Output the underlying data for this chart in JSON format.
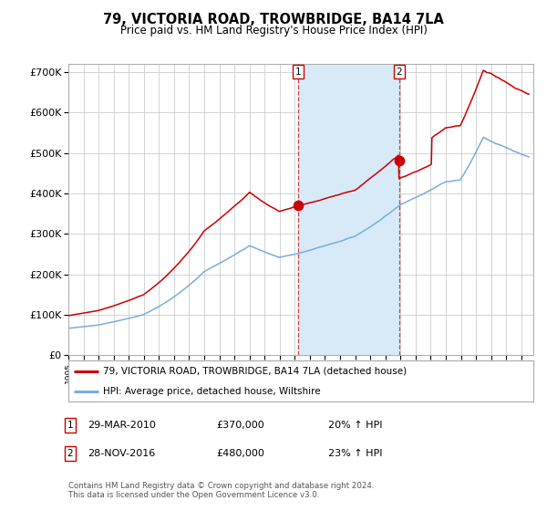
{
  "title": "79, VICTORIA ROAD, TROWBRIDGE, BA14 7LA",
  "subtitle": "Price paid vs. HM Land Registry's House Price Index (HPI)",
  "legend_line1": "79, VICTORIA ROAD, TROWBRIDGE, BA14 7LA (detached house)",
  "legend_line2": "HPI: Average price, detached house, Wiltshire",
  "sale1_date": "29-MAR-2010",
  "sale1_price": "£370,000",
  "sale1_hpi": "20% ↑ HPI",
  "sale1_year": 2010.23,
  "sale1_value": 370000,
  "sale2_date": "28-NOV-2016",
  "sale2_price": "£480,000",
  "sale2_hpi": "23% ↑ HPI",
  "sale2_year": 2016.91,
  "sale2_value": 480000,
  "red_line_color": "#cc0000",
  "blue_line_color": "#7aaddc",
  "shading_color": "#d8eaf8",
  "vline_color": "#cc4444",
  "dot_color": "#cc0000",
  "background_color": "#ffffff",
  "grid_color": "#cccccc",
  "ylim": [
    0,
    720000
  ],
  "xlim_start": 1995.0,
  "xlim_end": 2025.8,
  "footer": "Contains HM Land Registry data © Crown copyright and database right 2024.\nThis data is licensed under the Open Government Licence v3.0."
}
